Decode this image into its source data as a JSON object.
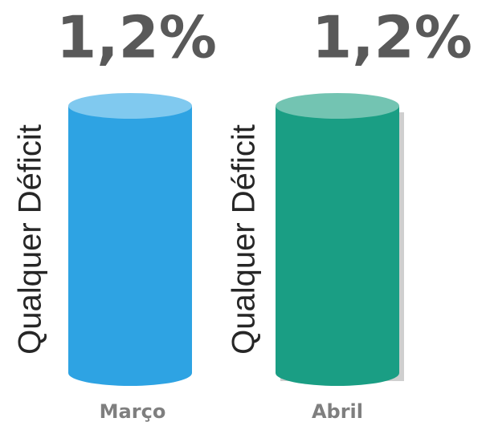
{
  "chart_data": {
    "type": "cylinder",
    "categories": [
      "Março",
      "Abril"
    ],
    "values": [
      1.2,
      1.2
    ],
    "value_labels": [
      "1,2%",
      "1,2%"
    ],
    "bar_labels": [
      "Qualquer Déficit",
      "Qualquer Déficit"
    ],
    "colors": [
      "#2ea3e3",
      "#1a9e84"
    ],
    "top_colors": [
      "#80c9ef",
      "#73c4b2"
    ]
  }
}
